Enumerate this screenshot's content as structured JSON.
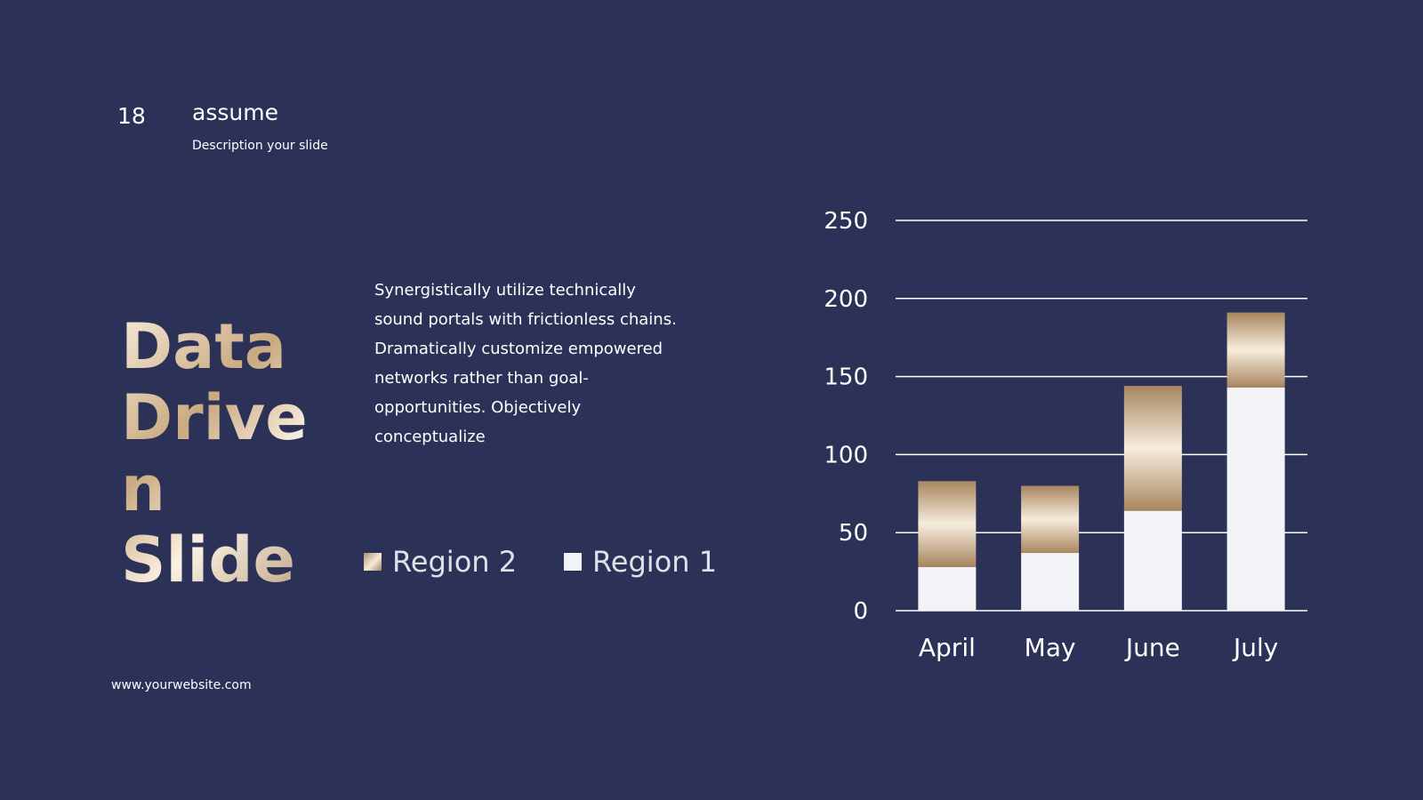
{
  "header": {
    "slide_number": "18",
    "heading": "assume",
    "description": "Description your slide"
  },
  "title_lines": [
    "Data",
    "Drive",
    "n",
    "Slide"
  ],
  "body_text": "Synergistically utilize technically sound portals with frictionless chains. Dramatically customize empowered networks rather than goal-opportunities. Objectively conceptualize",
  "footer": {
    "url": "www.yourwebsite.com"
  },
  "colors": {
    "background": "#2c3257",
    "region1": "#f2f3f7",
    "region2_gradient": [
      "#a8865f",
      "#f7ecdc"
    ]
  },
  "legend": [
    {
      "label": "Region 2",
      "icon": "gold-gradient-square"
    },
    {
      "label": "Region 1",
      "icon": "white-square"
    }
  ],
  "chart_data": {
    "type": "bar",
    "stacked": true,
    "categories": [
      "April",
      "May",
      "June",
      "July"
    ],
    "series": [
      {
        "name": "Region 1",
        "values": [
          28,
          37,
          64,
          143
        ]
      },
      {
        "name": "Region 2",
        "values": [
          55,
          43,
          80,
          48
        ]
      }
    ],
    "ylim": [
      0,
      250
    ],
    "yticks": [
      0,
      50,
      100,
      150,
      200,
      250
    ],
    "grid": true,
    "legend_position": "left"
  }
}
